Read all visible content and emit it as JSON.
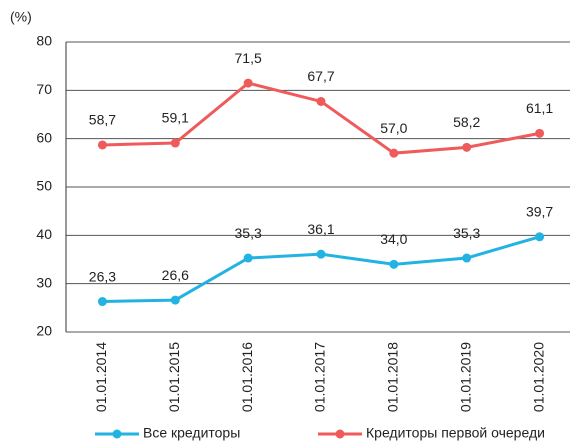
{
  "chart_data": {
    "type": "line",
    "y_label": "(%)",
    "categories": [
      "01.01.2014",
      "01.01.2015",
      "01.01.2016",
      "01.01.2017",
      "01.01.2018",
      "01.01.2019",
      "01.01.2020"
    ],
    "series": [
      {
        "name": "Все кредиторы",
        "color": "#22b3e3",
        "values": [
          26.3,
          26.6,
          35.3,
          36.1,
          34.0,
          35.3,
          39.7
        ],
        "value_labels": [
          "26,3",
          "26,6",
          "35,3",
          "36,1",
          "34,0",
          "35,3",
          "39,7"
        ]
      },
      {
        "name": "Кредиторы первой очереди",
        "color": "#ef5b5b",
        "values": [
          58.7,
          59.1,
          71.5,
          67.7,
          57.0,
          58.2,
          61.1
        ],
        "value_labels": [
          "58,7",
          "59,1",
          "71,5",
          "67,7",
          "57,0",
          "58,2",
          "61,1"
        ]
      }
    ],
    "ylim": [
      20,
      80
    ],
    "yticks": [
      20,
      30,
      40,
      50,
      60,
      70,
      80
    ],
    "grid": true,
    "legend": "bottom"
  }
}
